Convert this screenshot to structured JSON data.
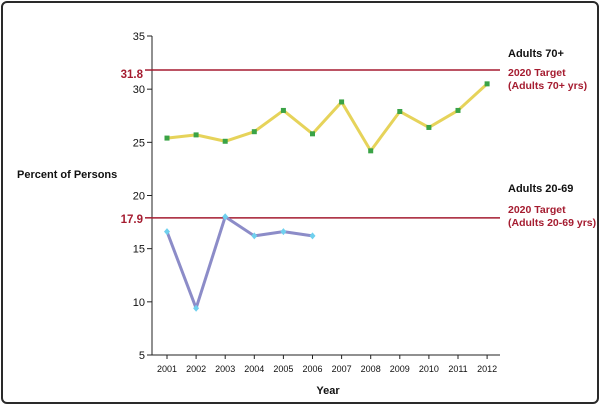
{
  "chart_data": {
    "type": "line",
    "xlabel": "Year",
    "ylabel": "Percent of Persons",
    "ylim": [
      5,
      35
    ],
    "yticks": [
      "35",
      "30",
      "25",
      "20",
      "15",
      "10",
      "5"
    ],
    "x": [
      "2001",
      "2002",
      "2003",
      "2004",
      "2005",
      "2006",
      "2007",
      "2008",
      "2009",
      "2010",
      "2011",
      "2012"
    ],
    "series": [
      {
        "name": "Adults 70+",
        "color": "#e6d35a",
        "marker_color": "#3aa346",
        "values": [
          25.4,
          25.7,
          25.1,
          26.0,
          28.0,
          25.8,
          28.8,
          24.2,
          27.9,
          26.4,
          28.0,
          30.5
        ]
      },
      {
        "name": "Adults 20-69",
        "color": "#8c8cc8",
        "marker_color": "#6fd0ee",
        "values": [
          16.6,
          9.4,
          18.0,
          16.2,
          16.6,
          16.2,
          null,
          null,
          null,
          null,
          null,
          null
        ]
      }
    ],
    "targets": [
      {
        "value": 31.8,
        "label": "31.8",
        "line1": "2020 Target",
        "line2": "(Adults 70+ yrs)"
      },
      {
        "value": 17.9,
        "label": "17.9",
        "line1": "2020 Target",
        "line2": "(Adults 20-69 yrs)"
      }
    ],
    "target_color": "#a51c30",
    "grid": false
  }
}
